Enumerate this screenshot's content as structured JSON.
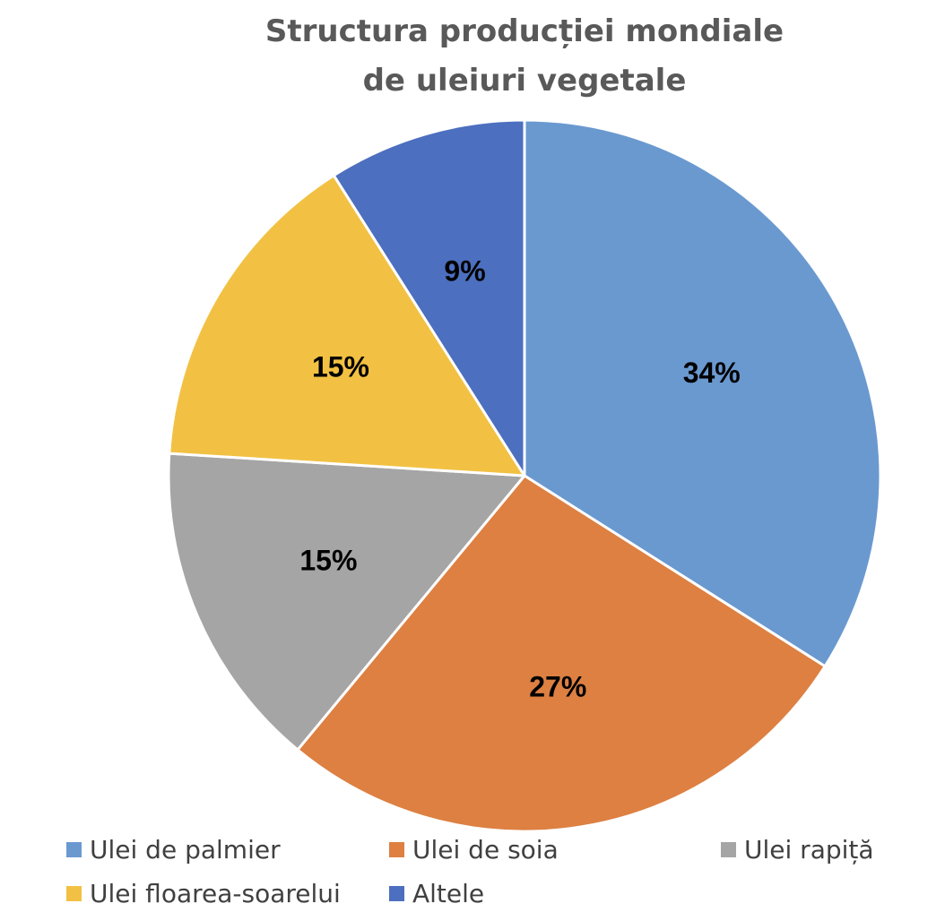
{
  "chart_data": {
    "type": "pie",
    "title": [
      "Structura producției mondiale",
      "de uleiuri vegetale"
    ],
    "categories": [
      "Ulei de palmier",
      "Ulei de soia",
      "Ulei rapiță",
      "Ulei floarea-soarelui",
      "Altele"
    ],
    "values": [
      34,
      27,
      15,
      15,
      9
    ],
    "data_labels": [
      "34%",
      "27%",
      "15%",
      "15%",
      "9%"
    ],
    "colors": [
      "#6a99d0",
      "#dd8042",
      "#a5a5a5",
      "#f2c143",
      "#4c6fbf"
    ],
    "start_angle_deg": 0,
    "direction": "clockwise",
    "legend_position": "bottom"
  }
}
